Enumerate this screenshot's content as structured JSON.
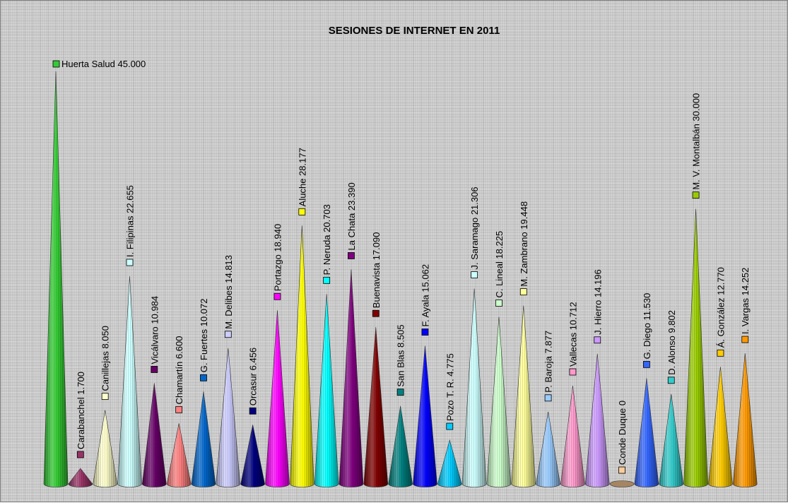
{
  "chart_data": {
    "type": "bar",
    "style": "cone",
    "title": "SESIONES DE INTERNET EN 2011",
    "xlabel": "",
    "ylabel": "",
    "ylim": [
      0,
      45000
    ],
    "grid": false,
    "legend": "none",
    "categories": [
      "Huerta Salud",
      "Carabanchel",
      "Canillejas",
      "I. Filipinas",
      "Vicálvaro",
      "Chamartín",
      "G. Fuertes",
      "M. Delibes",
      "Orcasur",
      "Portazgo",
      "Aluche",
      "P. Neruda",
      "La Chata",
      "Buenavista",
      "San Blas",
      "F. Ayala",
      "Pozo T. R.",
      "J. Saramago",
      "C. Lineal",
      "M. Zambrano",
      "P. Baroja",
      "Vallecas",
      "J. Hierro",
      "Conde Duque",
      "G. Diego",
      "D. Alonso",
      "M. V. Montalbán",
      "Á. González",
      "I. Vargas"
    ],
    "values": [
      45000,
      1700,
      8050,
      22655,
      10984,
      6600,
      10072,
      14813,
      6456,
      18940,
      28177,
      20703,
      23390,
      17090,
      8505,
      15062,
      4775,
      21306,
      18225,
      19448,
      7877,
      10712,
      14196,
      0,
      11530,
      9802,
      30000,
      12770,
      14252
    ],
    "labels": [
      "Huerta Salud 45.000",
      "Carabanchel 1.700",
      "Canillejas 8.050",
      "I. Filipinas 22.655",
      "Vicálvaro 10.984",
      "Chamartín 6.600",
      "G. Fuertes 10.072",
      "M. Delibes 14.813",
      "Orcasur 6.456",
      "Portazgo 18.940",
      "Aluche 28.177",
      "P. Neruda 20.703",
      "La Chata 23.390",
      "Buenavista 17.090",
      "San Blas 8.505",
      "F. Ayala 15.062",
      "Pozo T. R. 4.775",
      "J. Saramago 21.306",
      "C. Lineal 18.225",
      "M. Zambrano 19.448",
      "P. Baroja 7.877",
      "Vallecas 10.712",
      "J. Hierro 14.196",
      "Conde Duque 0",
      "G. Diego 11.530",
      "D. Alonso 9.802",
      "M. V. Montalbán 30.000",
      "Á. González 12.770",
      "I. Vargas 14.252"
    ],
    "colors": [
      "#33cc33",
      "#993366",
      "#ffffcc",
      "#ccffff",
      "#660066",
      "#ff8080",
      "#0066cc",
      "#ccccff",
      "#000080",
      "#ff00ff",
      "#ffff00",
      "#00ffff",
      "#800080",
      "#800000",
      "#008080",
      "#0000ff",
      "#00ccff",
      "#ccffff",
      "#ccffcc",
      "#ffff99",
      "#99ccff",
      "#ff99cc",
      "#cc99ff",
      "#ffcc99",
      "#3366ff",
      "#33cccc",
      "#99cc00",
      "#ffcc00",
      "#ff9900"
    ]
  }
}
